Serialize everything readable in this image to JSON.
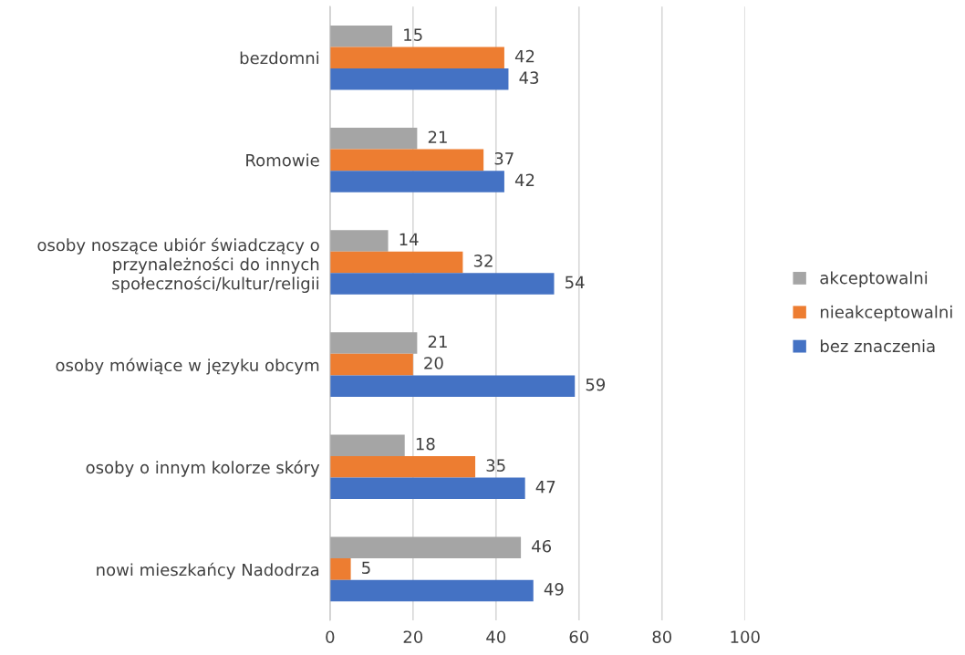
{
  "chart_data": {
    "type": "bar",
    "orientation": "horizontal",
    "categories": [
      "bezdomni",
      "Romowie",
      "osoby noszące ubiór świadczący o\nprzynależności do innych\nspołeczności/kultur/religii",
      "osoby mówiące w języku obcym",
      "osoby o innym kolorze skóry",
      "nowi mieszkańcy Nadodrza"
    ],
    "series": [
      {
        "name": "akceptowalni",
        "color": "#a5a5a5",
        "values": [
          15,
          21,
          14,
          21,
          18,
          46
        ]
      },
      {
        "name": "nieakceptowalni",
        "color": "#ed7d31",
        "values": [
          42,
          37,
          32,
          20,
          35,
          5
        ]
      },
      {
        "name": "bez znaczenia",
        "color": "#4472c4",
        "values": [
          43,
          42,
          54,
          59,
          47,
          49
        ]
      }
    ],
    "xlim": [
      0,
      100
    ],
    "xticks": [
      0,
      20,
      40,
      60,
      80,
      100
    ],
    "grid": "x",
    "legend": "right",
    "data_labels": true
  }
}
